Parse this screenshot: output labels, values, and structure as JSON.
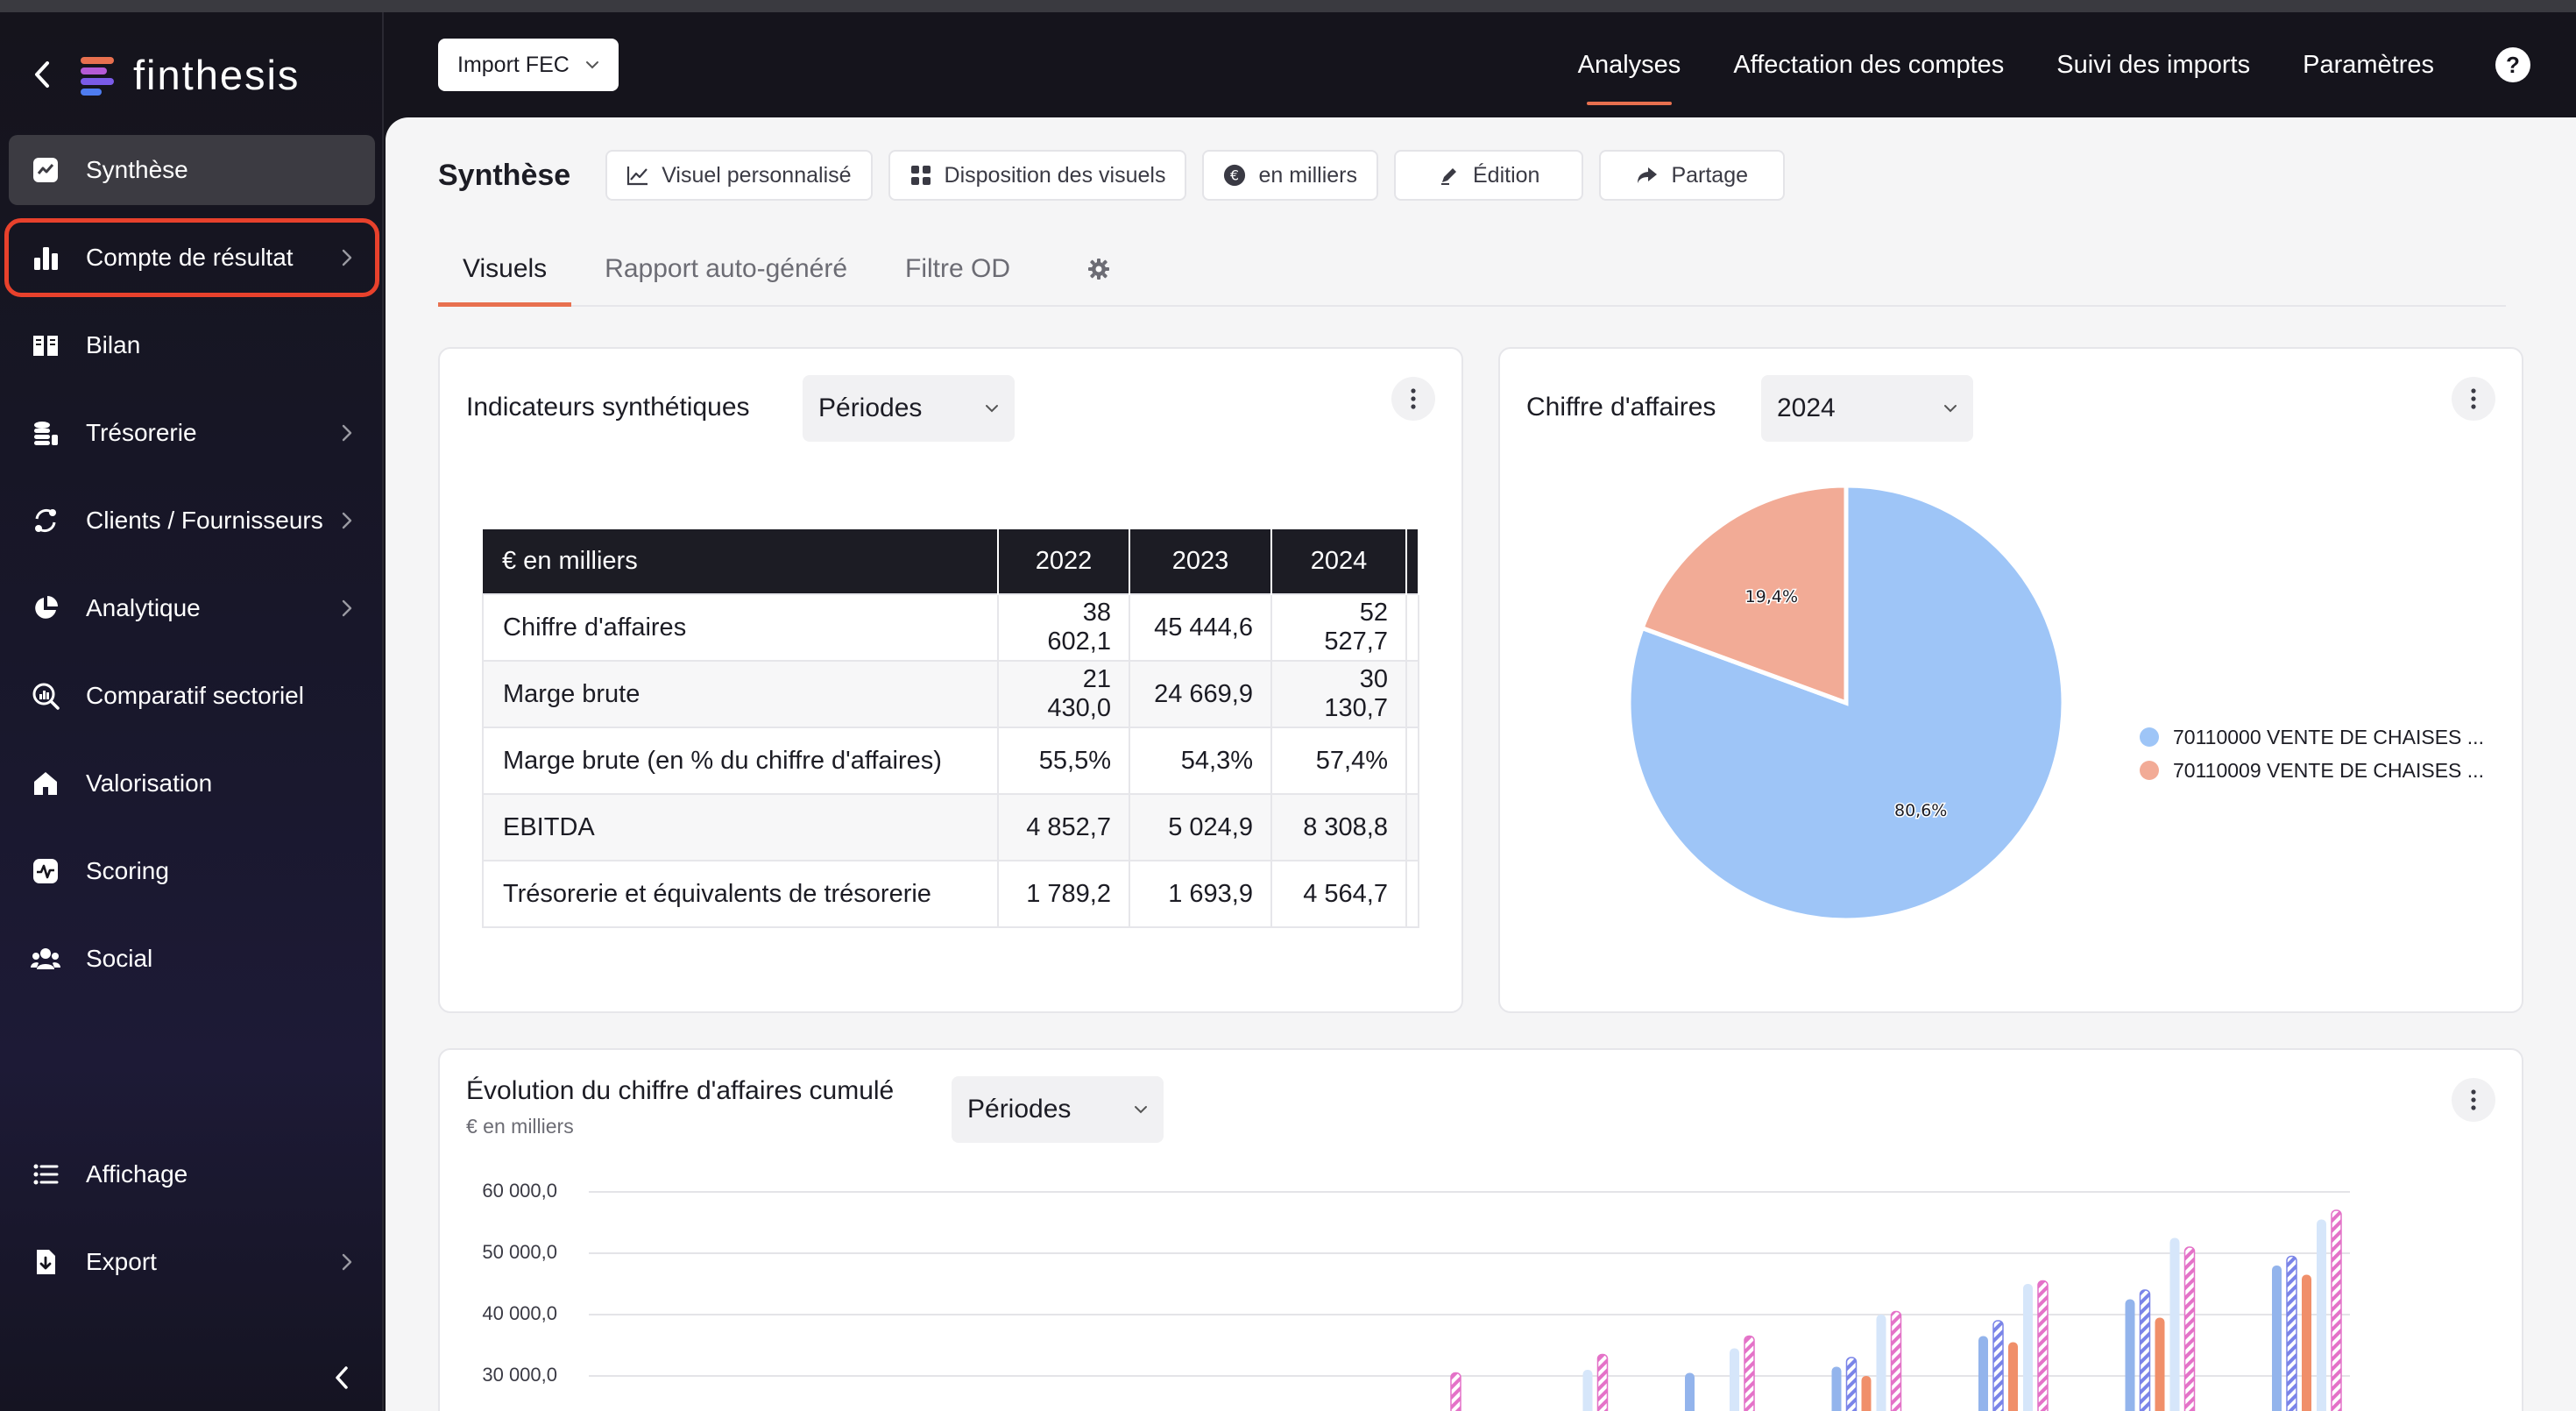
{
  "colors": {
    "accent": "#e8704f",
    "highlight_outline": "#e8412c",
    "sidebar_bg": "#15141c",
    "pie_blue": "#9ec5f7",
    "pie_salmon": "#f2ab96"
  },
  "brand": {
    "name": "finthesis",
    "back_icon": "chevron-left-icon"
  },
  "sidebar": {
    "items": [
      {
        "label": "Synthèse",
        "icon": "trend-chart-icon",
        "has_chevron": false,
        "active": true
      },
      {
        "label": "Compte de résultat",
        "icon": "bar-chart-icon",
        "has_chevron": true,
        "highlighted": true
      },
      {
        "label": "Bilan",
        "icon": "book-icon",
        "has_chevron": false
      },
      {
        "label": "Trésorerie",
        "icon": "coins-icon",
        "has_chevron": true
      },
      {
        "label": "Clients / Fournisseurs",
        "icon": "exchange-icon",
        "has_chevron": true
      },
      {
        "label": "Analytique",
        "icon": "pie-icon",
        "has_chevron": true
      },
      {
        "label": "Comparatif sectoriel",
        "icon": "magnifier-chart-icon",
        "has_chevron": false
      },
      {
        "label": "Valorisation",
        "icon": "home-icon",
        "has_chevron": false
      },
      {
        "label": "Scoring",
        "icon": "pulse-icon",
        "has_chevron": false
      },
      {
        "label": "Social",
        "icon": "users-icon",
        "has_chevron": false
      }
    ],
    "bottom_items": [
      {
        "label": "Affichage",
        "icon": "list-icon",
        "has_chevron": false
      },
      {
        "label": "Export",
        "icon": "download-icon",
        "has_chevron": true
      }
    ],
    "collapse_icon": "chevron-left-icon"
  },
  "header": {
    "import_button": "Import FEC",
    "nav": [
      {
        "label": "Analyses",
        "active": true
      },
      {
        "label": "Affectation des comptes"
      },
      {
        "label": "Suivi des imports"
      },
      {
        "label": "Paramètres"
      }
    ],
    "help": "?"
  },
  "toolbar": {
    "title": "Synthèse",
    "buttons": [
      {
        "label": "Visuel personnalisé",
        "icon": "line-chart-icon"
      },
      {
        "label": "Disposition des visuels",
        "icon": "grid-icon"
      },
      {
        "label": "en milliers",
        "icon": "euro-icon"
      },
      {
        "label": "Édition",
        "icon": "pen-icon"
      },
      {
        "label": "Partage",
        "icon": "share-icon"
      }
    ]
  },
  "tabs": [
    {
      "label": "Visuels",
      "active": true
    },
    {
      "label": "Rapport auto-généré"
    },
    {
      "label": "Filtre OD"
    }
  ],
  "kpi_card": {
    "title": "Indicateurs synthétiques",
    "select": "Périodes",
    "table": {
      "header": [
        "€ en milliers",
        "2022",
        "2023",
        "2024"
      ],
      "rows": [
        [
          "Chiffre d'affaires",
          "38 602,1",
          "45 444,6",
          "52 527,7"
        ],
        [
          "Marge brute",
          "21 430,0",
          "24 669,9",
          "30 130,7"
        ],
        [
          "Marge brute (en % du chiffre d'affaires)",
          "55,5%",
          "54,3%",
          "57,4%"
        ],
        [
          "EBITDA",
          "4 852,7",
          "5 024,9",
          "8 308,8"
        ],
        [
          "Trésorerie et équivalents de trésorerie",
          "1 789,2",
          "1 693,9",
          "4 564,7"
        ]
      ]
    }
  },
  "ca_card": {
    "title": "Chiffre d'affaires",
    "select": "2024",
    "legend": [
      {
        "label": "70110000 VENTE DE CHAISES ...",
        "color": "#9ec5f7"
      },
      {
        "label": "70110009 VENTE DE CHAISES ...",
        "color": "#f2ab96"
      }
    ]
  },
  "evolution_card": {
    "title": "Évolution du chiffre d'affaires cumulé",
    "subtitle": "€ en milliers",
    "select": "Périodes"
  },
  "chart_data": [
    {
      "type": "pie",
      "title": "Chiffre d'affaires",
      "labels": [
        "70110000 VENTE DE CHAISES ...",
        "70110009 VENTE DE CHAISES ..."
      ],
      "values": [
        80.6,
        19.4
      ],
      "value_labels": [
        "80,6%",
        "19,4%"
      ],
      "colors": [
        "#9ec5f7",
        "#f2ab96"
      ],
      "legend": "right"
    },
    {
      "type": "bar",
      "title": "Évolution du chiffre d'affaires cumulé",
      "subtitle": "€ en milliers",
      "ytick_labels": [
        "60 000,0",
        "50 000,0",
        "40 000,0",
        "30 000,0"
      ],
      "yticks": [
        60000,
        50000,
        40000,
        30000
      ],
      "ylim": [
        30000,
        60000
      ],
      "grid": true,
      "series": [
        {
          "style": "solid",
          "color": "#93b4ec",
          "values": [
            null,
            null,
            null,
            null,
            null,
            null,
            null,
            30500,
            31500,
            36500,
            42500,
            48000
          ]
        },
        {
          "style": "hatched",
          "color": "#7a84e8",
          "values": [
            null,
            null,
            null,
            null,
            null,
            null,
            null,
            null,
            33000,
            39000,
            44000,
            49500
          ]
        },
        {
          "style": "solid",
          "color": "#f08f6a",
          "values": [
            null,
            null,
            null,
            null,
            null,
            null,
            null,
            null,
            30000,
            35500,
            39500,
            46500
          ]
        },
        {
          "style": "solid",
          "color": "#d6e6fa",
          "values": [
            null,
            null,
            null,
            null,
            null,
            null,
            31000,
            34500,
            40000,
            45000,
            52500,
            55500
          ]
        },
        {
          "style": "hatched",
          "color": "#e472c8",
          "values": [
            null,
            null,
            null,
            null,
            null,
            30500,
            33500,
            36500,
            40500,
            45500,
            51000,
            57000
          ]
        }
      ]
    }
  ]
}
